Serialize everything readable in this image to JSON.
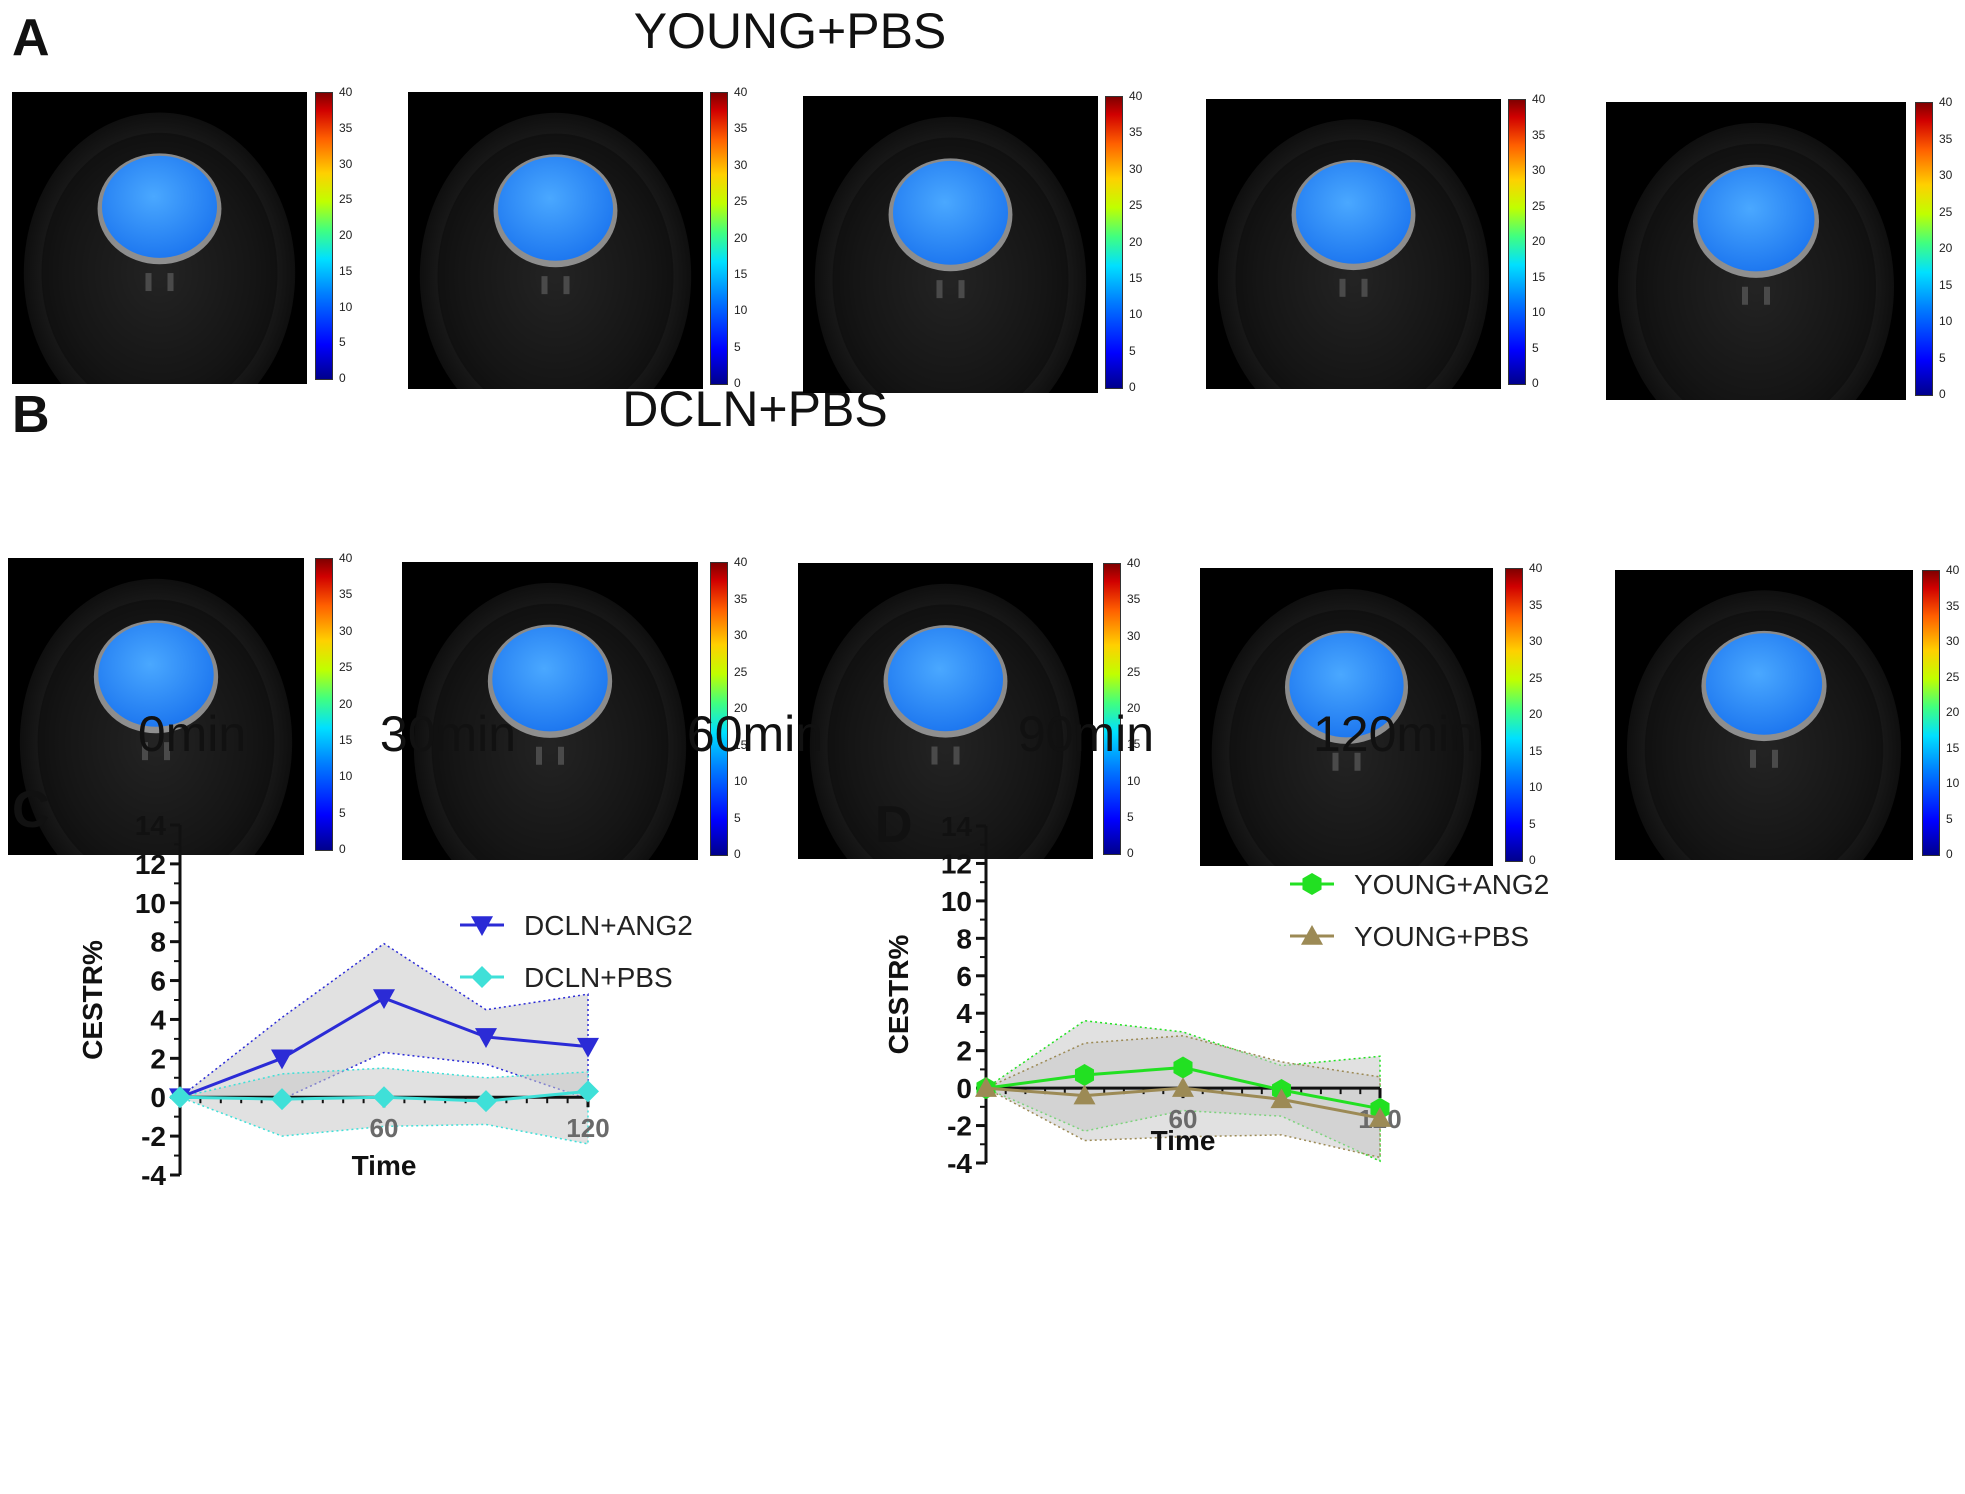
{
  "panels": {
    "a_letter": "A",
    "b_letter": "B",
    "c_letter": "C",
    "d_letter": "D"
  },
  "rows": {
    "a_title": "YOUNG+PBS",
    "b_title": "DCLN+PBS"
  },
  "time_labels": [
    "0min",
    "30min",
    "60min",
    "90min",
    "120min"
  ],
  "colorbar_ticks": [
    "40",
    "35",
    "30",
    "25",
    "20",
    "15",
    "10",
    "5",
    "0"
  ],
  "colors": {
    "dcln_ang2": "#2b2bd6",
    "dcln_pbs": "#3fe0d8",
    "young_ang2": "#22e022",
    "young_pbs": "#9c8a55",
    "band": "#c8c8c8"
  },
  "chart_data": [
    {
      "panel": "C",
      "type": "line",
      "xlabel": "Time",
      "ylabel": "CESTR%",
      "xlim": [
        0,
        120
      ],
      "ylim": [
        -4,
        14
      ],
      "x_ticks_labeled": [
        "60",
        "120"
      ],
      "y_ticks": [
        "14",
        "12",
        "10",
        "8",
        "6",
        "4",
        "2",
        "0",
        "-2",
        "-4"
      ],
      "legend_position": "top-right",
      "series": [
        {
          "name": "DCLN+ANG2",
          "marker": "triangle-down",
          "x": [
            0,
            30,
            60,
            90,
            120
          ],
          "y": [
            0,
            2.0,
            5.1,
            3.1,
            2.6
          ],
          "upper": [
            0,
            4.1,
            7.9,
            4.5,
            5.3
          ],
          "lower": [
            0,
            -0.1,
            2.3,
            1.7,
            -0.1
          ]
        },
        {
          "name": "DCLN+PBS",
          "marker": "diamond",
          "x": [
            0,
            30,
            60,
            90,
            120
          ],
          "y": [
            0,
            -0.1,
            0.0,
            -0.2,
            0.3
          ],
          "upper": [
            0,
            1.2,
            1.5,
            1.0,
            1.3
          ],
          "lower": [
            0,
            -2.0,
            -1.5,
            -1.4,
            -2.4
          ]
        }
      ]
    },
    {
      "panel": "D",
      "type": "line",
      "xlabel": "Time",
      "ylabel": "CESTR%",
      "xlim": [
        0,
        120
      ],
      "ylim": [
        -4,
        14
      ],
      "x_ticks_labeled": [
        "60",
        "120"
      ],
      "y_ticks": [
        "14",
        "12",
        "10",
        "8",
        "6",
        "4",
        "2",
        "0",
        "-2",
        "-4"
      ],
      "legend_position": "top-right",
      "series": [
        {
          "name": "YOUNG+ANG2",
          "marker": "hexagon",
          "x": [
            0,
            30,
            60,
            90,
            120
          ],
          "y": [
            0,
            0.7,
            1.1,
            -0.1,
            -1.1
          ],
          "upper": [
            0,
            3.6,
            3.0,
            1.2,
            1.7
          ],
          "lower": [
            0,
            -2.3,
            -1.2,
            -1.5,
            -3.9
          ]
        },
        {
          "name": "YOUNG+PBS",
          "marker": "triangle-up",
          "x": [
            0,
            30,
            60,
            90,
            120
          ],
          "y": [
            0,
            -0.4,
            0.0,
            -0.6,
            -1.6
          ],
          "upper": [
            0,
            2.4,
            2.8,
            1.4,
            0.6
          ],
          "lower": [
            0,
            -2.8,
            -2.6,
            -2.5,
            -3.7
          ]
        }
      ]
    }
  ]
}
